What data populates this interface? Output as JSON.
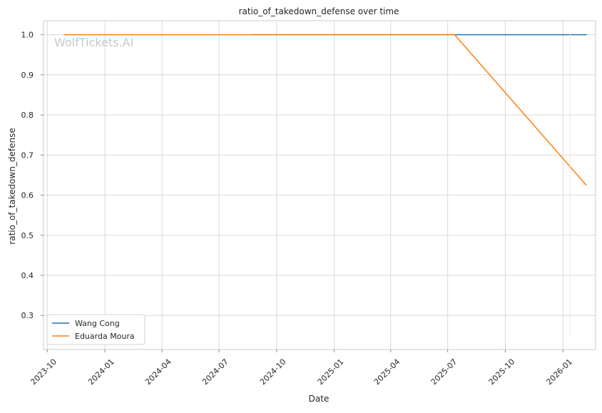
{
  "chart_data": {
    "type": "line",
    "title": "ratio_of_takedown_defense over time",
    "xlabel": "Date",
    "ylabel": "ratio_of_takedown_defense",
    "watermark": "WolfTickets.AI",
    "x_ticks": [
      "2023-10",
      "2024-01",
      "2024-04",
      "2024-07",
      "2024-10",
      "2025-01",
      "2025-04",
      "2025-07",
      "2025-10",
      "2026-01"
    ],
    "y_ticks": [
      "0.3",
      "0.4",
      "0.5",
      "0.6",
      "0.7",
      "0.8",
      "0.9",
      "1.0"
    ],
    "xlim": [
      "2023-09-25",
      "2026-02-22"
    ],
    "ylim": [
      0.215,
      1.035
    ],
    "grid": true,
    "legend_position": "lower-left",
    "series": [
      {
        "name": "Wang Cong",
        "color": "#1f77b4",
        "points": [
          {
            "x": "2024-08-24",
            "y": 1.0
          },
          {
            "x": "2026-02-07",
            "y": 1.0
          }
        ]
      },
      {
        "name": "Eduarda Moura",
        "color": "#ff7f0e",
        "points": [
          {
            "x": "2023-10-28",
            "y": 1.0
          },
          {
            "x": "2025-07-12",
            "y": 1.0
          },
          {
            "x": "2026-02-07",
            "y": 0.625
          }
        ]
      }
    ]
  }
}
